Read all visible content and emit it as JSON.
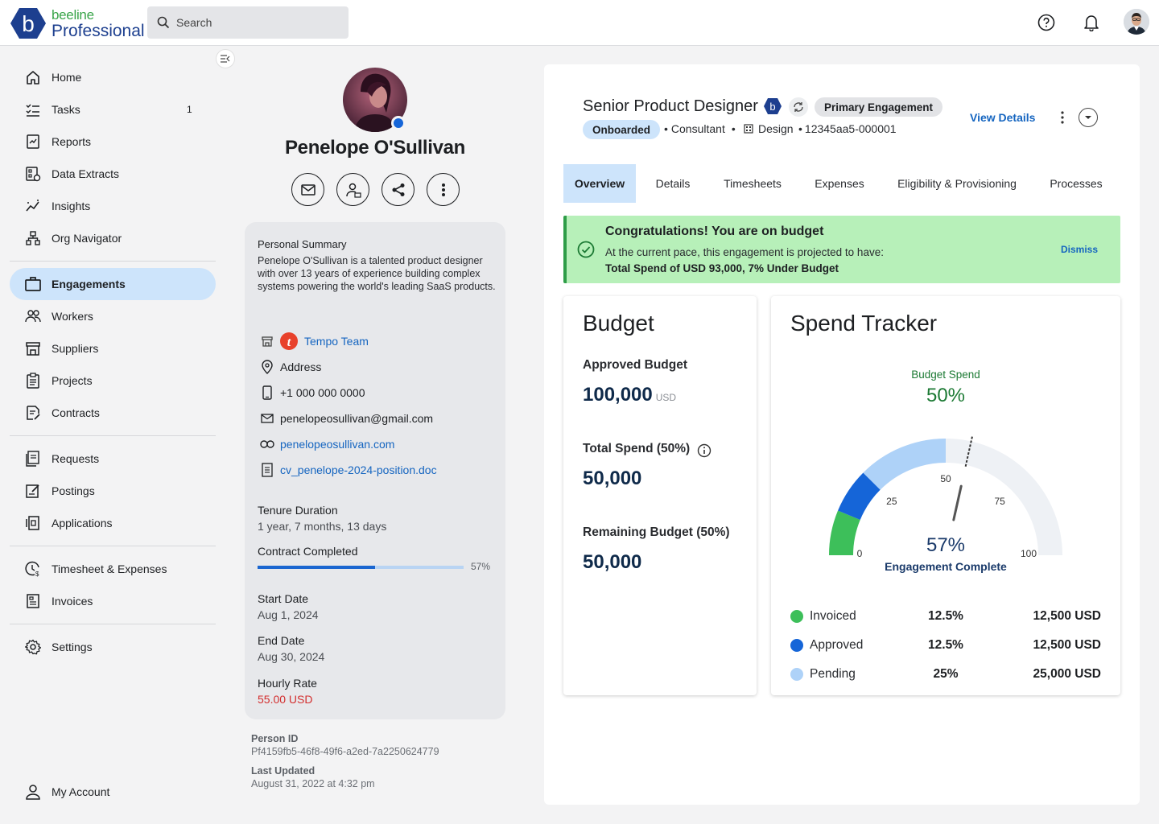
{
  "app": {
    "brand_top": "beeline",
    "brand_bottom": "Professional",
    "search_placeholder": "Search"
  },
  "sidebar": {
    "items": [
      {
        "label": "Home"
      },
      {
        "label": "Tasks",
        "badge": "1"
      },
      {
        "label": "Reports"
      },
      {
        "label": "Data Extracts"
      },
      {
        "label": "Insights"
      },
      {
        "label": "Org Navigator"
      },
      {
        "label": "Engagements"
      },
      {
        "label": "Workers"
      },
      {
        "label": "Suppliers"
      },
      {
        "label": "Projects"
      },
      {
        "label": "Contracts"
      },
      {
        "label": "Requests"
      },
      {
        "label": "Postings"
      },
      {
        "label": "Applications"
      },
      {
        "label": "Timesheet & Expenses"
      },
      {
        "label": "Invoices"
      },
      {
        "label": "Settings"
      },
      {
        "label": "My Account"
      }
    ]
  },
  "profile": {
    "name": "Penelope O'Sullivan",
    "summary_title": "Personal Summary",
    "summary": "Penelope O'Sullivan is a talented product designer with over 13 years of experience building complex systems powering the world's leading SaaS products.",
    "company": "Tempo Team",
    "address": "Address",
    "phone": "+1 000 000 0000",
    "email": "penelopeosullivan@gmail.com",
    "website": "penelopeosullivan.com",
    "cv": "cv_penelope-2024-position.doc",
    "tenure_label": "Tenure Duration",
    "tenure_value": "1 year, 7 months, 13 days",
    "contract_label": "Contract Completed",
    "contract_pct": "57%",
    "contract_fraction": 0.57,
    "start_label": "Start Date",
    "start_value": "Aug 1, 2024",
    "end_label": "End Date",
    "end_value": "Aug 30, 2024",
    "rate_label": "Hourly Rate",
    "rate_value": "55.00 USD",
    "person_id_label": "Person ID",
    "person_id": "Pf4159fb5-46f8-49f6-a2ed-7a2250624779",
    "updated_label": "Last Updated",
    "updated_value": "August 31, 2022 at 4:32 pm"
  },
  "engagement": {
    "title": "Senior Product Designer",
    "primary_chip": "Primary Engagement",
    "status": "Onboarded",
    "type": "Consultant",
    "department": "Design",
    "id": "12345aa5-000001",
    "view_details": "View Details",
    "tabs": [
      "Overview",
      "Details",
      "Timesheets",
      "Expenses",
      "Eligibility & Provisioning",
      "Processes"
    ]
  },
  "banner": {
    "title": "Congratulations! You are on budget",
    "line1": "At the current pace, this engagement is projected to have:",
    "line2": "Total Spend of USD 93,000, 7% Under Budget",
    "dismiss": "Dismiss"
  },
  "budget": {
    "title": "Budget",
    "approved_label": "Approved Budget",
    "approved_value": "100,000",
    "approved_unit": "USD",
    "spend_label": "Total Spend (50%)",
    "spend_value": "50,000",
    "remaining_label": "Remaining Budget (50%)",
    "remaining_value": "50,000"
  },
  "spend_tracker": {
    "title": "Spend Tracker",
    "budget_spend_label": "Budget Spend",
    "budget_spend_value": "50%",
    "engagement_complete_value": "57%",
    "engagement_complete_label": "Engagement Complete",
    "ticks": [
      "0",
      "25",
      "50",
      "75",
      "100"
    ],
    "legend": [
      {
        "name": "Invoiced",
        "pct": "12.5%",
        "amount": "12,500 USD",
        "color": "#3dbf5a"
      },
      {
        "name": "Approved",
        "pct": "12.5%",
        "amount": "12,500 USD",
        "color": "#1565d8"
      },
      {
        "name": "Pending",
        "pct": "25%",
        "amount": "25,000 USD",
        "color": "#aed2f8"
      }
    ]
  },
  "chart_data": {
    "type": "gauge",
    "range": [
      0,
      100
    ],
    "ticks": [
      0,
      25,
      50,
      75,
      100
    ],
    "segments": [
      {
        "name": "Invoiced",
        "value": 12.5,
        "color": "#3dbf5a"
      },
      {
        "name": "Approved",
        "value": 12.5,
        "color": "#1565d8"
      },
      {
        "name": "Pending",
        "value": 25,
        "color": "#aed2f8"
      }
    ],
    "budget_spend": 50,
    "needle": 57,
    "marker": 57
  }
}
